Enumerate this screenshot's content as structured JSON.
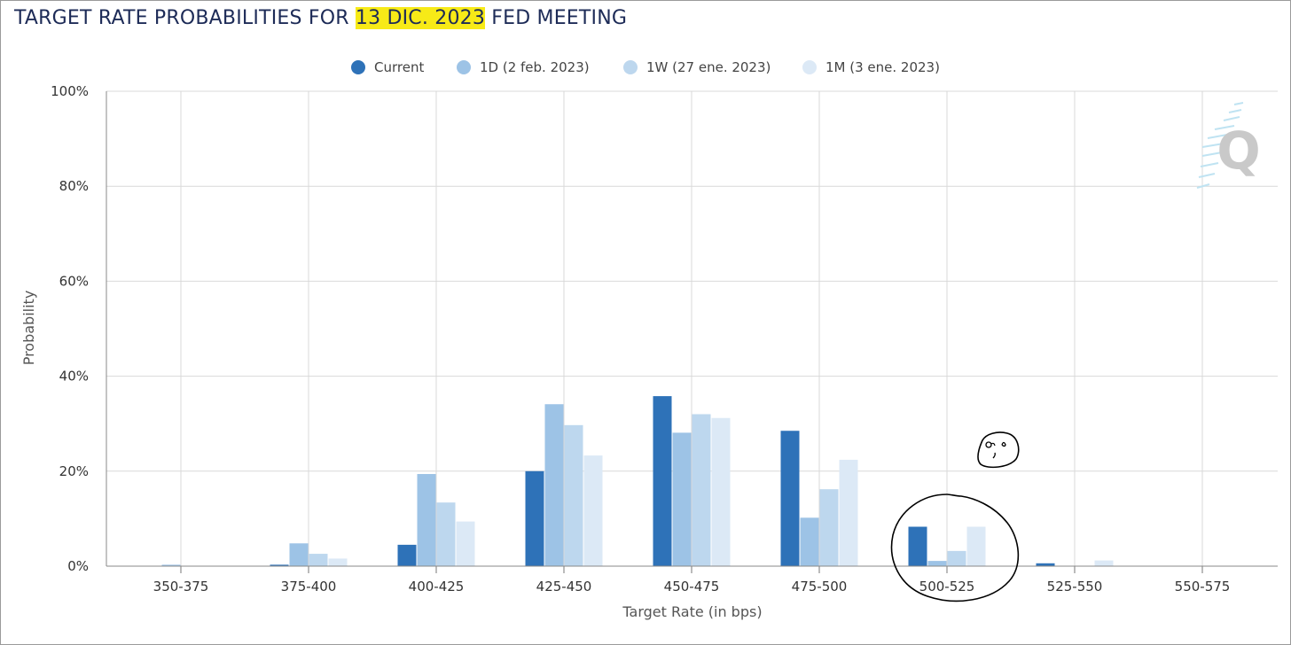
{
  "header": {
    "title_prefix": "TARGET RATE PROBABILITIES FOR ",
    "title_highlight": "13 DIC. 2023",
    "title_suffix": " FED MEETING",
    "highlight_color": "#f7ea17"
  },
  "watermark": {
    "letter": "Q",
    "icon": "quikstrike-logo-icon"
  },
  "annotations": {
    "doodle": "face-doodle",
    "circle": "hand-drawn-circle-around-500-525"
  },
  "chart_data": {
    "type": "bar",
    "title": "TARGET RATE PROBABILITIES FOR 13 DIC. 2023 FED MEETING",
    "xlabel": "Target Rate (in bps)",
    "ylabel": "Probability",
    "ylim": [
      0,
      100
    ],
    "y_ticks": [
      "0%",
      "20%",
      "40%",
      "60%",
      "80%",
      "100%"
    ],
    "y_tick_values": [
      0,
      20,
      40,
      60,
      80,
      100
    ],
    "grid": true,
    "legend_position": "top-center",
    "categories": [
      "350-375",
      "375-400",
      "400-425",
      "425-450",
      "450-475",
      "475-500",
      "500-525",
      "525-550",
      "550-575"
    ],
    "series": [
      {
        "name": "Current",
        "color": "#2e72b8",
        "values": [
          0.0,
          0.3,
          4.5,
          20.0,
          35.8,
          28.5,
          8.3,
          0.6,
          0.0
        ]
      },
      {
        "name": "1D (2 feb. 2023)",
        "color": "#9dc3e6",
        "values": [
          0.3,
          4.8,
          19.4,
          34.1,
          28.1,
          10.2,
          1.1,
          0.0,
          0.0
        ]
      },
      {
        "name": "1W (27 ene. 2023)",
        "color": "#bdd7ee",
        "values": [
          0.0,
          2.6,
          13.4,
          29.7,
          32.0,
          16.2,
          3.2,
          0.0,
          0.0
        ]
      },
      {
        "name": "1M (3 ene. 2023)",
        "color": "#dce9f6",
        "values": [
          0.0,
          1.6,
          9.4,
          23.3,
          31.2,
          22.4,
          8.3,
          1.2,
          0.0
        ]
      }
    ]
  }
}
